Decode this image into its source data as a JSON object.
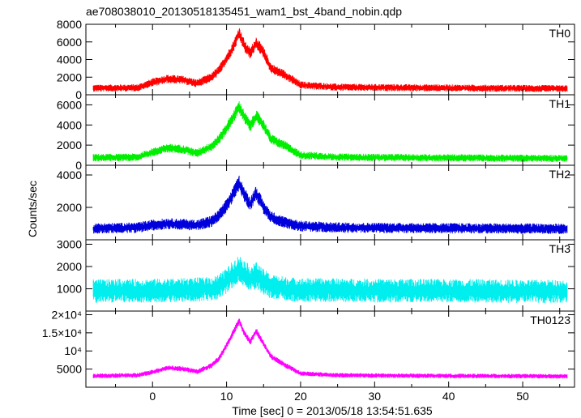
{
  "title": "ae708038010_20130518135451_wam1_bst_4band_nobin.qdp",
  "xlabel": "Time [sec] 0 = 2013/05/18 13:54:51.635",
  "ylabel": "Counts/sec",
  "chart_data": {
    "type": "line",
    "title": "ae708038010_20130518135451_wam1_bst_4band_nobin.qdp",
    "xlabel": "Time [sec] 0 = 2013/05/18 13:54:51.635",
    "ylabel": "Counts/sec",
    "xlim": [
      -9,
      57
    ],
    "xticks": [
      0,
      10,
      20,
      30,
      40,
      50
    ],
    "xtick_labels": [
      "0",
      "10",
      "20",
      "30",
      "40",
      "50"
    ],
    "x_data_range": [
      -8,
      56
    ],
    "panels": [
      {
        "name": "TH0",
        "color": "#ff0000",
        "ylim": [
          0,
          8000
        ],
        "yticks": [
          0,
          2000,
          4000,
          6000,
          8000
        ],
        "ytick_labels": [
          "0",
          "2000",
          "4000",
          "6000",
          "8000"
        ],
        "baseline": 700,
        "noise": 280,
        "profile_x": [
          -8,
          -2,
          0,
          2,
          4,
          6,
          8,
          9,
          10,
          11,
          11.7,
          12.5,
          13.2,
          14,
          15,
          16,
          18,
          20,
          25,
          35,
          45,
          56
        ],
        "profile_y": [
          750,
          800,
          1400,
          1800,
          1700,
          1300,
          2000,
          2800,
          4100,
          5600,
          7000,
          5400,
          4700,
          5900,
          4800,
          3000,
          2200,
          1100,
          850,
          800,
          750,
          700
        ]
      },
      {
        "name": "TH1",
        "color": "#00ee00",
        "ylim": [
          0,
          7000
        ],
        "yticks": [
          0,
          2000,
          4000,
          6000
        ],
        "ytick_labels": [
          "0",
          "2000",
          "4000",
          "6000"
        ],
        "baseline": 700,
        "noise": 260,
        "profile_x": [
          -8,
          -2,
          0,
          2,
          4,
          6,
          8,
          9,
          10,
          11,
          11.7,
          12.5,
          13.2,
          14,
          15,
          16,
          18,
          20,
          25,
          35,
          45,
          56
        ],
        "profile_y": [
          750,
          800,
          1300,
          1700,
          1600,
          1200,
          1900,
          2600,
          3700,
          4900,
          5800,
          4700,
          3900,
          4900,
          4000,
          2600,
          1900,
          1000,
          800,
          750,
          720,
          680
        ]
      },
      {
        "name": "TH2",
        "color": "#0000dd",
        "ylim": [
          0,
          4600
        ],
        "yticks": [
          2000,
          4000
        ],
        "ytick_labels": [
          "2000",
          "4000"
        ],
        "baseline": 700,
        "noise": 230,
        "profile_x": [
          -8,
          -2,
          0,
          2,
          4,
          6,
          8,
          9,
          10,
          11,
          11.7,
          12.5,
          13.2,
          14,
          15,
          16,
          18,
          20,
          25,
          35,
          45,
          56
        ],
        "profile_y": [
          700,
          750,
          900,
          1000,
          950,
          900,
          1150,
          1500,
          2100,
          2900,
          3500,
          2700,
          2200,
          2900,
          2000,
          1400,
          1050,
          850,
          750,
          720,
          700,
          680
        ]
      },
      {
        "name": "TH3",
        "color": "#00eeee",
        "ylim": [
          0,
          3200
        ],
        "yticks": [
          1000,
          2000,
          3000
        ],
        "ytick_labels": [
          "1000",
          "2000",
          "3000"
        ],
        "baseline": 900,
        "noise": 380,
        "profile_x": [
          -8,
          0,
          5,
          8,
          9,
          10,
          11,
          11.7,
          12.5,
          13.2,
          14,
          15,
          16,
          18,
          20,
          30,
          45,
          56
        ],
        "profile_y": [
          900,
          920,
          950,
          1000,
          1100,
          1350,
          1700,
          1900,
          1650,
          1450,
          1600,
          1300,
          1100,
          1000,
          950,
          920,
          900,
          880
        ]
      },
      {
        "name": "TH0123",
        "color": "#ff00ff",
        "ylim": [
          0,
          21000
        ],
        "yticks": [
          5000,
          10000,
          15000,
          20000
        ],
        "ytick_labels": [
          "5000",
          "10⁴",
          "1.5×10⁴",
          "2×10⁴"
        ],
        "baseline": 3100,
        "noise": 450,
        "profile_x": [
          -8,
          -2,
          0,
          2,
          4,
          6,
          8,
          9,
          10,
          11,
          11.7,
          12.5,
          13.2,
          14,
          15,
          16,
          18,
          20,
          25,
          35,
          45,
          56
        ],
        "profile_y": [
          3100,
          3300,
          4200,
          5300,
          5100,
          4300,
          6000,
          8000,
          11500,
          15500,
          18200,
          14500,
          12500,
          15500,
          12000,
          8500,
          6000,
          3800,
          3300,
          3150,
          3100,
          3000
        ]
      }
    ]
  }
}
